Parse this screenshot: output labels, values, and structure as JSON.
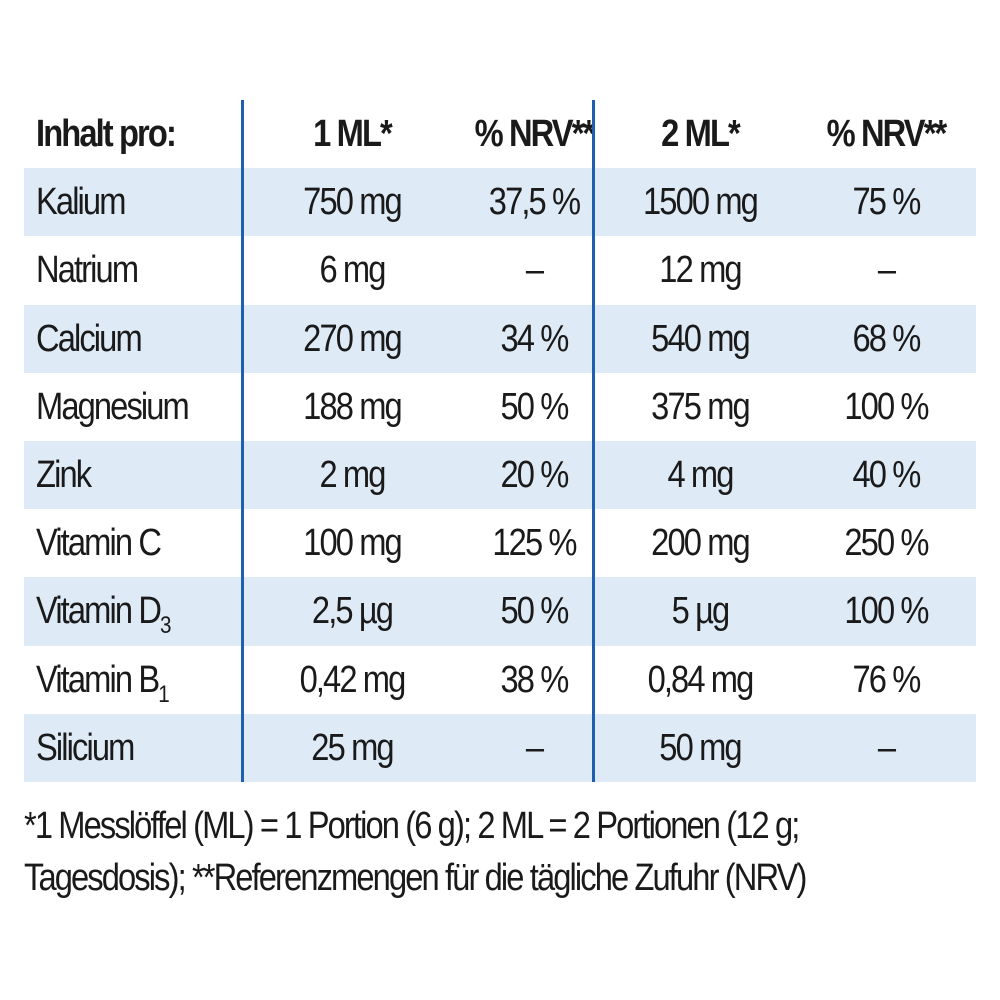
{
  "table": {
    "header": [
      "Inhalt pro:",
      "1 ML*",
      "% NRV**",
      "2 ML*",
      "% NRV**"
    ],
    "rows": [
      {
        "name": "Kalium",
        "sub": "",
        "ml1": "750 mg",
        "nrv1": "37,5 %",
        "ml2": "1500 mg",
        "nrv2": "75 %"
      },
      {
        "name": "Natrium",
        "sub": "",
        "ml1": "6 mg",
        "nrv1": "–",
        "ml2": "12 mg",
        "nrv2": "–"
      },
      {
        "name": "Calcium",
        "sub": "",
        "ml1": "270 mg",
        "nrv1": "34 %",
        "ml2": "540 mg",
        "nrv2": "68 %"
      },
      {
        "name": "Magnesium",
        "sub": "",
        "ml1": "188 mg",
        "nrv1": "50 %",
        "ml2": "375 mg",
        "nrv2": "100 %"
      },
      {
        "name": "Zink",
        "sub": "",
        "ml1": "2 mg",
        "nrv1": "20 %",
        "ml2": "4 mg",
        "nrv2": "40 %"
      },
      {
        "name": "Vitamin C",
        "sub": "",
        "ml1": "100 mg",
        "nrv1": "125 %",
        "ml2": "200 mg",
        "nrv2": "250 %"
      },
      {
        "name": "Vitamin D",
        "sub": "3",
        "ml1": "2,5 µg",
        "nrv1": "50 %",
        "ml2": "5 µg",
        "nrv2": "100 %"
      },
      {
        "name": "Vitamin B",
        "sub": "1",
        "ml1": "0,42 mg",
        "nrv1": "38 %",
        "ml2": "0,84 mg",
        "nrv2": "76 %"
      },
      {
        "name": "Silicium",
        "sub": "",
        "ml1": "25 mg",
        "nrv1": "–",
        "ml2": "50 mg",
        "nrv2": "–"
      }
    ]
  },
  "footnote": {
    "line1": "*1 Messlöffel (ML) = 1 Portion (6 g); 2 ML = 2 Portionen (12 g;",
    "line2": "Tagesdosis); **Referenzmengen für die tägliche Zufuhr (NRV)"
  },
  "colors": {
    "stripe": "#dfeaf7",
    "divider": "#1f5fb0",
    "text": "#1a1a1a"
  }
}
